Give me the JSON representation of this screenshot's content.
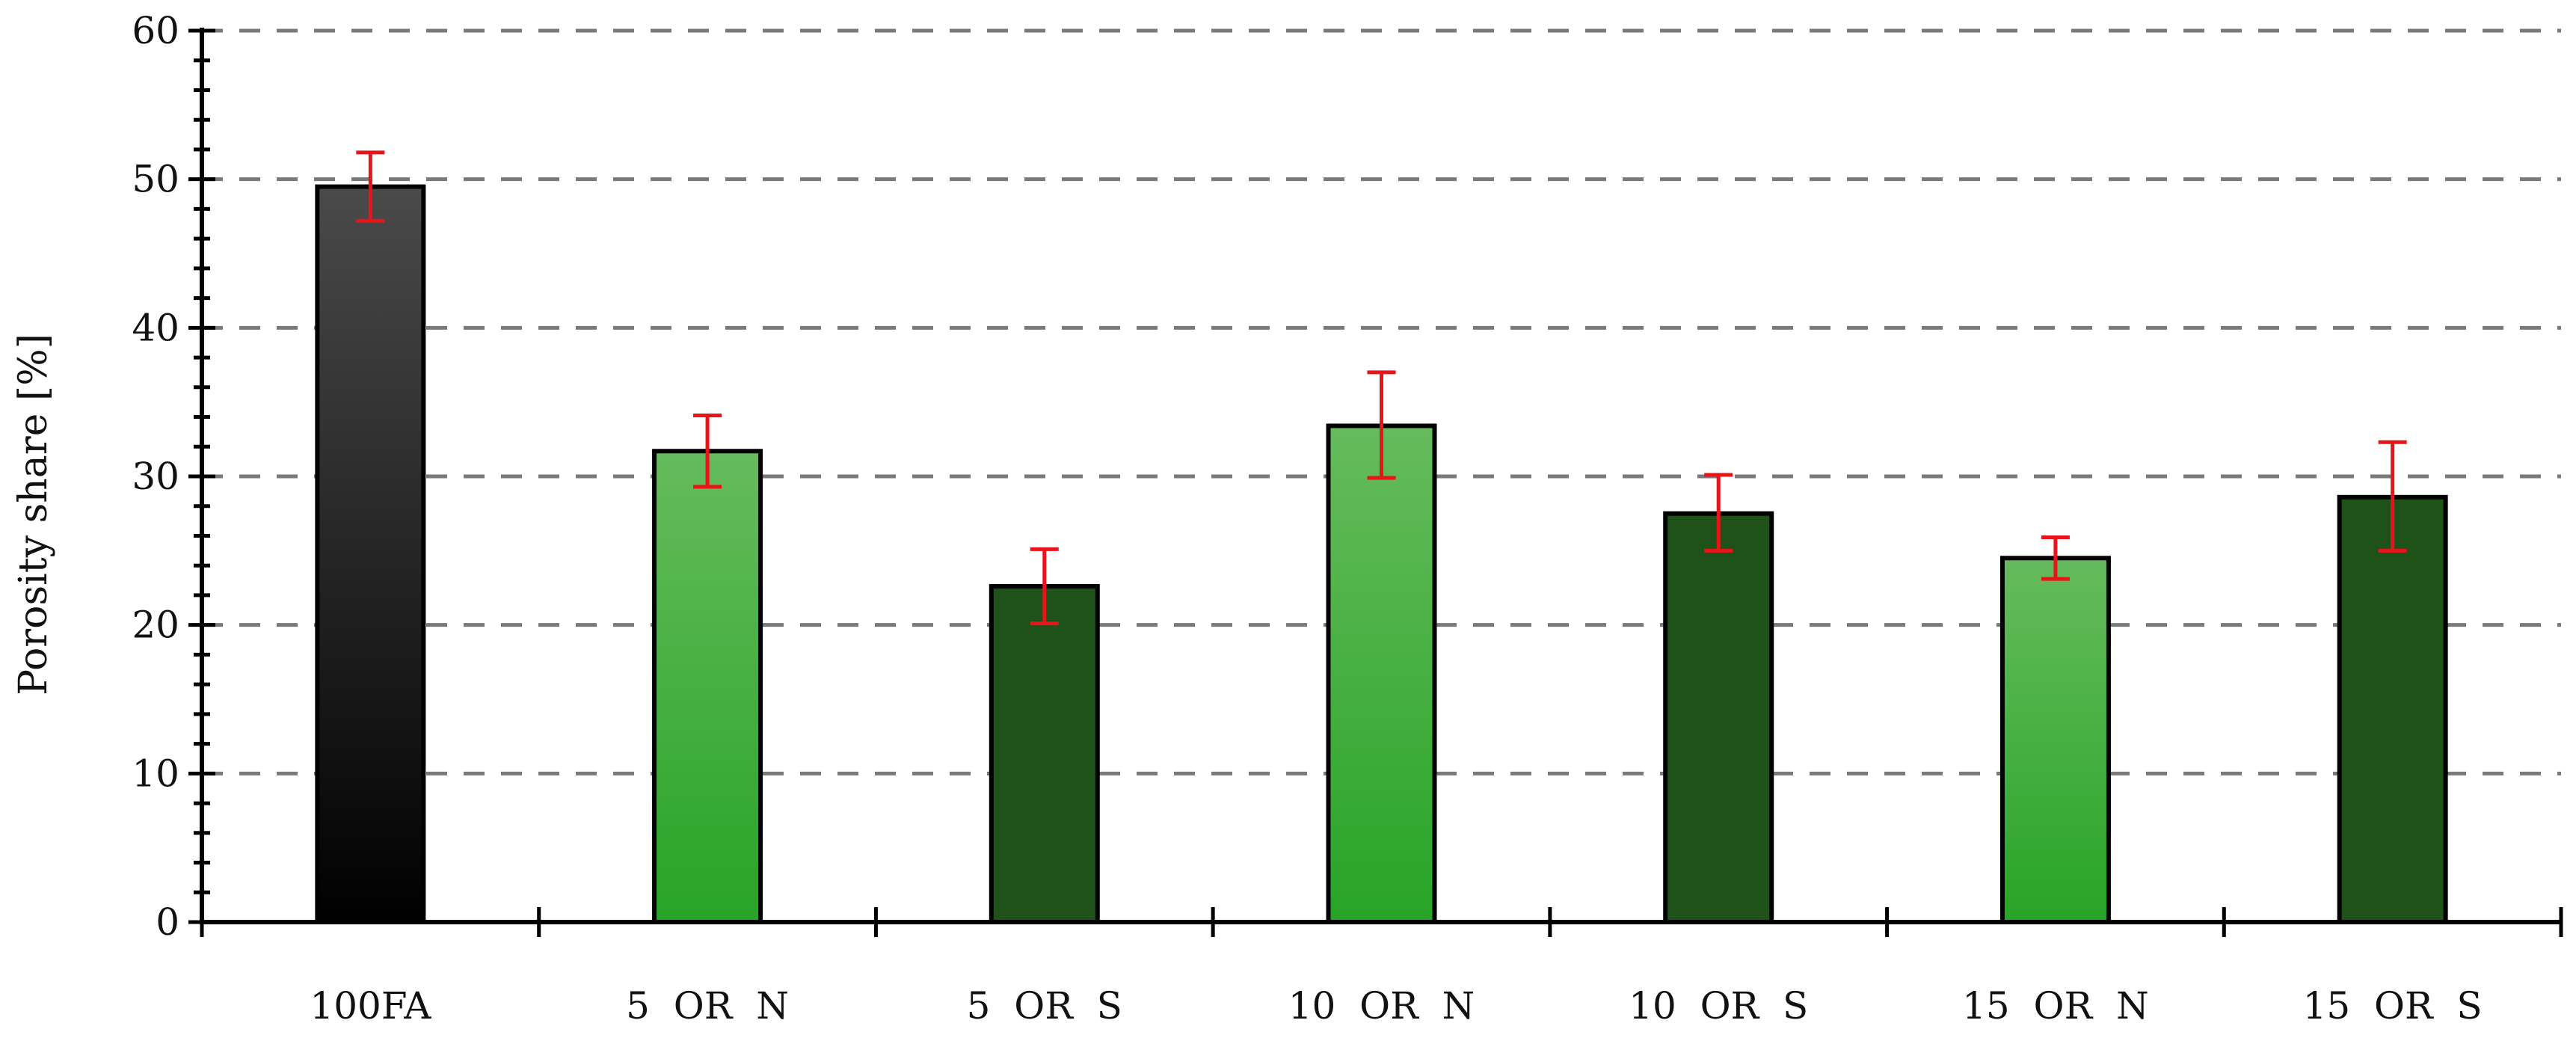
{
  "chart_data": {
    "type": "bar",
    "title": "",
    "xlabel": "",
    "ylabel": "Porosity share [%]",
    "ylim": [
      0,
      60
    ],
    "yticks": [
      0,
      10,
      20,
      30,
      40,
      50,
      60
    ],
    "grid": "horizontal dashed",
    "legend": "none",
    "categories": [
      "100FA",
      "5  OR  N",
      "5  OR  S",
      "10  OR  N",
      "10  OR  S",
      "15  OR  N",
      "15  OR  S"
    ],
    "values": [
      49.5,
      31.7,
      22.6,
      33.4,
      27.5,
      24.5,
      28.6
    ],
    "error_low": [
      47.2,
      29.3,
      20.1,
      29.9,
      25.0,
      23.1,
      25.0
    ],
    "error_high": [
      51.8,
      34.1,
      25.1,
      37.0,
      30.1,
      25.9,
      32.3
    ],
    "bar_styles": [
      "black",
      "light-green",
      "dark-green",
      "light-green",
      "dark-green",
      "light-green",
      "dark-green"
    ],
    "colors": {
      "black_top": "#4a4a4a",
      "black_bottom": "#000000",
      "light_green_top": "#66bb5c",
      "light_green_bottom": "#27a427",
      "dark_green": "#1f5219",
      "error_bar": "#e8141a",
      "grid": "#7a7a7a",
      "axis": "#000000"
    }
  }
}
